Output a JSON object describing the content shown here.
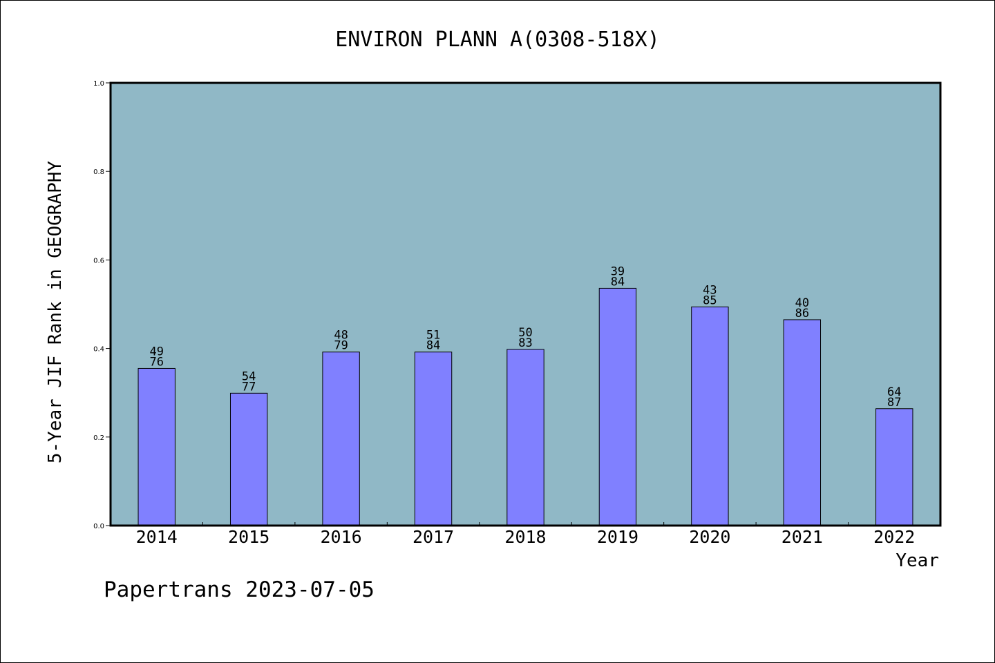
{
  "chart_data": {
    "type": "bar",
    "title": "ENVIRON PLANN A(0308-518X)",
    "xlabel": "Year",
    "ylabel": "5-Year JIF Rank in GEOGRAPHY",
    "ylim": [
      0,
      1.0
    ],
    "yticks": [
      "0.0",
      "0.2",
      "0.4",
      "0.6",
      "0.8",
      "1.0"
    ],
    "categories": [
      "2014",
      "2015",
      "2016",
      "2017",
      "2018",
      "2019",
      "2020",
      "2021",
      "2022"
    ],
    "values": [
      0.355,
      0.299,
      0.392,
      0.392,
      0.398,
      0.536,
      0.494,
      0.465,
      0.264
    ],
    "labels_top": [
      "49",
      "54",
      "48",
      "51",
      "50",
      "39",
      "43",
      "40",
      "64"
    ],
    "labels_bottom": [
      "76",
      "77",
      "79",
      "84",
      "83",
      "84",
      "85",
      "86",
      "87"
    ],
    "grid": false,
    "colors": {
      "plot_background": "#90b8c6",
      "bar_fill": "#8080ff",
      "bar_stroke": "#000000"
    }
  },
  "footer": {
    "text": "Papertrans 2023-07-05"
  }
}
